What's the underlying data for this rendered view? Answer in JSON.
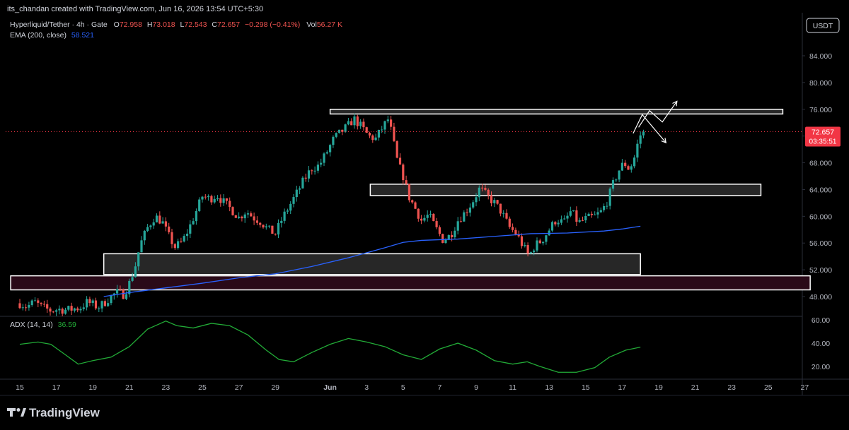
{
  "header": {
    "credit": "its_chandan created with TradingView.com, Jun 16, 2026 13:54 UTC+5:30",
    "symbol": "Hyperliquid/Tether · 4h · Gate",
    "ohlc": {
      "o_label": "O",
      "o_value": "72.958",
      "h_label": "H",
      "h_value": "73.018",
      "l_label": "L",
      "l_value": "72.543",
      "c_label": "C",
      "c_value": "72.657",
      "change": "−0.298 (−0.41%)",
      "vol_label": "Vol",
      "vol_value": "56.27 K"
    },
    "ema_label": "EMA (200, close)",
    "ema_value": "58.521",
    "currency_button": "USDT"
  },
  "price_tag": {
    "price": "72.657",
    "countdown": "03:35:51"
  },
  "adx": {
    "label": "ADX (14, 14)",
    "value": "36.59"
  },
  "footer": {
    "logo_text": "TradingView"
  },
  "colors": {
    "background": "#000000",
    "up": "#26a69a",
    "down": "#ef5350",
    "ema": "#2962ff",
    "adx": "#22ab37",
    "zone_fill": "#2e2e2e",
    "zone_stroke": "#ffffff",
    "pink_zone": "#2a0a18"
  },
  "chart_data": [
    {
      "type": "candlestick",
      "interval": "4h",
      "y_axis": {
        "ticks": [
          48.0,
          52.0,
          56.0,
          60.0,
          64.0,
          68.0,
          72.0,
          76.0,
          80.0,
          84.0
        ],
        "tick_labels": [
          "48.000",
          "52.000",
          "56.000",
          "60.000",
          "64.000",
          "68.000",
          "72.000",
          "76.000",
          "80.000",
          "84.000"
        ],
        "range": [
          46,
          88
        ]
      },
      "x_axis": {
        "tick_labels": [
          "15",
          "17",
          "19",
          "21",
          "23",
          "25",
          "27",
          "29",
          "Jun",
          "3",
          "5",
          "7",
          "9",
          "11",
          "13",
          "15",
          "17",
          "19",
          "21",
          "23",
          "25",
          "27"
        ],
        "day_index": [
          0,
          2,
          4,
          6,
          8,
          10,
          12,
          14,
          17,
          19,
          21,
          23,
          25,
          27,
          29,
          31,
          33,
          35,
          37,
          39,
          41,
          43
        ],
        "range_days": [
          -0.5,
          43.3
        ]
      },
      "price_path": [
        [
          0.0,
          47.0
        ],
        [
          0.4,
          46.5
        ],
        [
          0.8,
          47.2
        ],
        [
          1.2,
          46.4
        ],
        [
          1.7,
          45.9
        ],
        [
          2.1,
          46.1
        ],
        [
          2.6,
          46.0
        ],
        [
          3.0,
          46.2
        ],
        [
          3.3,
          46.3
        ],
        [
          3.7,
          47.2
        ],
        [
          4.0,
          46.8
        ],
        [
          4.3,
          46.4
        ],
        [
          4.6,
          47.0
        ],
        [
          4.9,
          47.8
        ],
        [
          5.3,
          48.6
        ],
        [
          5.7,
          48.3
        ],
        [
          6.0,
          50.0
        ],
        [
          6.3,
          52.3
        ],
        [
          6.6,
          55.8
        ],
        [
          7.0,
          58.3
        ],
        [
          7.4,
          60.0
        ],
        [
          7.8,
          59.2
        ],
        [
          8.1,
          57.3
        ],
        [
          8.5,
          55.4
        ],
        [
          8.9,
          56.2
        ],
        [
          9.3,
          58.4
        ],
        [
          9.7,
          61.0
        ],
        [
          10.0,
          63.0
        ],
        [
          10.4,
          62.6
        ],
        [
          10.8,
          63.2
        ],
        [
          11.2,
          62.0
        ],
        [
          11.6,
          61.0
        ],
        [
          12.0,
          59.8
        ],
        [
          12.4,
          60.8
        ],
        [
          12.8,
          59.8
        ],
        [
          13.2,
          59.2
        ],
        [
          13.6,
          58.0
        ],
        [
          14.0,
          57.4
        ],
        [
          14.4,
          59.8
        ],
        [
          14.8,
          61.7
        ],
        [
          15.2,
          63.6
        ],
        [
          15.6,
          65.6
        ],
        [
          16.0,
          67.2
        ],
        [
          16.4,
          67.6
        ],
        [
          16.8,
          69.5
        ],
        [
          17.2,
          71.6
        ],
        [
          17.6,
          72.6
        ],
        [
          18.0,
          73.6
        ],
        [
          18.3,
          74.6
        ],
        [
          18.7,
          73.4
        ],
        [
          19.1,
          72.0
        ],
        [
          19.5,
          71.6
        ],
        [
          19.9,
          73.4
        ],
        [
          20.2,
          74.6
        ],
        [
          20.4,
          72.0
        ],
        [
          20.7,
          68.0
        ],
        [
          21.0,
          66.0
        ],
        [
          21.3,
          63.0
        ],
        [
          21.6,
          61.5
        ],
        [
          22.0,
          59.4
        ],
        [
          22.4,
          60.2
        ],
        [
          22.8,
          58.2
        ],
        [
          23.2,
          56.4
        ],
        [
          23.6,
          57.2
        ],
        [
          24.0,
          59.4
        ],
        [
          24.4,
          60.6
        ],
        [
          24.8,
          62.2
        ],
        [
          25.2,
          64.2
        ],
        [
          25.6,
          63.0
        ],
        [
          26.0,
          62.0
        ],
        [
          26.4,
          60.6
        ],
        [
          26.8,
          58.4
        ],
        [
          27.2,
          57.4
        ],
        [
          27.6,
          55.4
        ],
        [
          27.9,
          54.0
        ],
        [
          28.2,
          55.6
        ],
        [
          28.6,
          56.4
        ],
        [
          29.0,
          58.0
        ],
        [
          29.4,
          59.6
        ],
        [
          29.8,
          59.0
        ],
        [
          30.2,
          60.8
        ],
        [
          30.6,
          59.0
        ],
        [
          31.0,
          59.6
        ],
        [
          31.5,
          60.0
        ],
        [
          31.9,
          60.8
        ],
        [
          32.2,
          62.4
        ],
        [
          32.5,
          64.8
        ],
        [
          32.8,
          66.8
        ],
        [
          33.1,
          68.0
        ],
        [
          33.4,
          67.0
        ],
        [
          33.7,
          69.0
        ],
        [
          33.9,
          71.5
        ],
        [
          34.1,
          72.8
        ],
        [
          34.3,
          72.66
        ]
      ],
      "ema_200": [
        [
          4.6,
          48.0
        ],
        [
          6.0,
          48.6
        ],
        [
          8.0,
          49.3
        ],
        [
          10.0,
          50.0
        ],
        [
          12.0,
          50.8
        ],
        [
          14.0,
          51.4
        ],
        [
          16.0,
          52.5
        ],
        [
          18.0,
          53.8
        ],
        [
          20.0,
          55.3
        ],
        [
          21.0,
          56.1
        ],
        [
          22.0,
          56.4
        ],
        [
          24.0,
          56.6
        ],
        [
          26.0,
          57.0
        ],
        [
          28.0,
          57.4
        ],
        [
          30.0,
          57.5
        ],
        [
          32.0,
          57.8
        ],
        [
          33.0,
          58.1
        ],
        [
          34.0,
          58.52
        ]
      ],
      "zones": [
        {
          "y_top": 76.0,
          "y_bottom": 75.3,
          "x_start": 17.0,
          "x_end": 41.8
        },
        {
          "y_top": 64.8,
          "y_bottom": 63.1,
          "x_start": 19.2,
          "x_end": 40.6
        },
        {
          "y_top": 54.4,
          "y_bottom": 51.3,
          "x_start": 4.6,
          "x_end": 34.0
        },
        {
          "y_top": 51.1,
          "y_bottom": 49.0,
          "x_start": -0.5,
          "x_end": 43.3
        }
      ],
      "current_price": 72.657,
      "projection_arrows": [
        {
          "path": [
            [
              33.9,
              73.3
            ],
            [
              34.5,
              75.8
            ],
            [
              35.2,
              74.1
            ],
            [
              36.0,
              77.2
            ]
          ],
          "direction": "up"
        },
        {
          "path": [
            [
              33.6,
              72.4
            ],
            [
              34.1,
              75.2
            ],
            [
              35.4,
              71.0
            ]
          ],
          "direction": "down"
        }
      ]
    },
    {
      "type": "line",
      "name": "ADX (14, 14)",
      "y_axis": {
        "ticks": [
          20.0,
          40.0,
          60.0
        ],
        "tick_labels": [
          "20.00",
          "40.00",
          "60.00"
        ],
        "range": [
          5,
          65
        ]
      },
      "points": [
        [
          0.0,
          39
        ],
        [
          1.0,
          41
        ],
        [
          1.7,
          39
        ],
        [
          2.5,
          30
        ],
        [
          3.2,
          22
        ],
        [
          4.0,
          25
        ],
        [
          5.0,
          28
        ],
        [
          6.0,
          37
        ],
        [
          7.0,
          52
        ],
        [
          8.0,
          59
        ],
        [
          8.6,
          55
        ],
        [
          9.5,
          53
        ],
        [
          10.5,
          57
        ],
        [
          11.5,
          55
        ],
        [
          12.5,
          47
        ],
        [
          13.5,
          34
        ],
        [
          14.2,
          26
        ],
        [
          15.0,
          24
        ],
        [
          16.0,
          32
        ],
        [
          17.0,
          39
        ],
        [
          18.0,
          44
        ],
        [
          19.0,
          41
        ],
        [
          20.0,
          37
        ],
        [
          21.0,
          30
        ],
        [
          22.0,
          26
        ],
        [
          23.0,
          35
        ],
        [
          24.0,
          40
        ],
        [
          25.0,
          34
        ],
        [
          26.0,
          25
        ],
        [
          27.0,
          22
        ],
        [
          27.8,
          24
        ],
        [
          28.5,
          20
        ],
        [
          29.5,
          15
        ],
        [
          30.5,
          15
        ],
        [
          31.5,
          19
        ],
        [
          32.3,
          28
        ],
        [
          33.2,
          34
        ],
        [
          34.0,
          36.59
        ]
      ]
    }
  ]
}
